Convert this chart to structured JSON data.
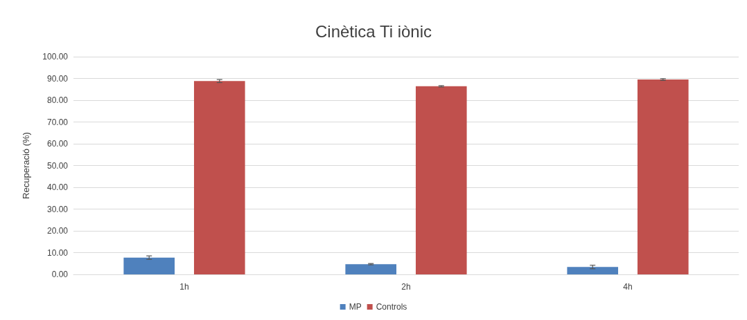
{
  "chart_data": {
    "type": "bar",
    "title": "Cinètica Ti iònic",
    "ylabel": "Recuperació (%)",
    "categories": [
      "1h",
      "2h",
      "4h"
    ],
    "series": [
      {
        "name": "MP",
        "color": "#4f81bd",
        "values": [
          7.7,
          4.7,
          3.4
        ],
        "errors": [
          0.8,
          0.3,
          0.8
        ]
      },
      {
        "name": "Controls",
        "color": "#c0504d",
        "values": [
          88.8,
          86.4,
          89.5
        ],
        "errors": [
          0.7,
          0.3,
          0.4
        ]
      }
    ],
    "ylim": [
      0,
      100
    ],
    "yticks": [
      {
        "value": 0,
        "label": "0.00"
      },
      {
        "value": 10,
        "label": "10.00"
      },
      {
        "value": 20,
        "label": "20.00"
      },
      {
        "value": 30,
        "label": "30.00"
      },
      {
        "value": 40,
        "label": "40.00"
      },
      {
        "value": 50,
        "label": "50.00"
      },
      {
        "value": 60,
        "label": "60.00"
      },
      {
        "value": 70,
        "label": "70.00"
      },
      {
        "value": 80,
        "label": "80.00"
      },
      {
        "value": 90,
        "label": "90.00"
      },
      {
        "value": 100,
        "label": "100.00"
      }
    ],
    "grid": "y",
    "legend": "bottom"
  }
}
